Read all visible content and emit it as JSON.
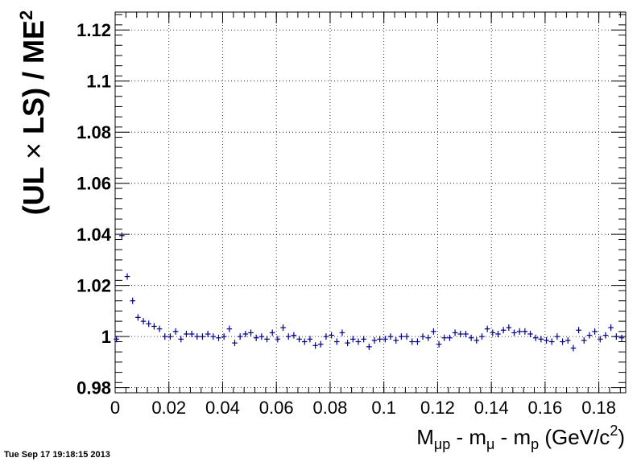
{
  "chart_data": {
    "type": "scatter",
    "title": "",
    "ylabel": "(UL × LS) / ME²",
    "ylabel_parts": {
      "prefix": "(UL ",
      "times": "×",
      "mid": " LS) / ME",
      "sup": "2"
    },
    "xlabel": "Mμp - mμ - mp (GeV/c²)",
    "xlabel_parts": {
      "p1": "M",
      "s1": "μp",
      "p2": " - m",
      "s2": "μ",
      "p3": " - m",
      "s3": "p",
      "p4": " (GeV/c",
      "sup": "2",
      "p5": ")"
    },
    "xlim": [
      0,
      0.19
    ],
    "ylim": [
      0.978,
      1.127
    ],
    "x_ticks": [
      "0",
      "0.02",
      "0.04",
      "0.06",
      "0.08",
      "0.1",
      "0.12",
      "0.14",
      "0.16",
      "0.18"
    ],
    "x_tick_values": [
      0,
      0.02,
      0.04,
      0.06,
      0.08,
      0.1,
      0.12,
      0.14,
      0.16,
      0.18
    ],
    "y_ticks": [
      "0.98",
      "1",
      "1.02",
      "1.04",
      "1.06",
      "1.08",
      "1.1",
      "1.12"
    ],
    "y_tick_values": [
      0.98,
      1.0,
      1.02,
      1.04,
      1.06,
      1.08,
      1.1,
      1.12
    ],
    "grid": true,
    "marker_color": "#00008b",
    "series": [
      {
        "x": [
          0.0005,
          0.0025,
          0.0045,
          0.0065,
          0.0085,
          0.0105,
          0.0125,
          0.0145,
          0.0165,
          0.0185,
          0.0205,
          0.0225,
          0.0245,
          0.0265,
          0.0285,
          0.0305,
          0.0325,
          0.0345,
          0.0365,
          0.0385,
          0.0405,
          0.0425,
          0.0445,
          0.0465,
          0.0485,
          0.0505,
          0.0525,
          0.0545,
          0.0565,
          0.0585,
          0.0605,
          0.0625,
          0.0645,
          0.0665,
          0.0685,
          0.0705,
          0.0725,
          0.0745,
          0.0765,
          0.0785,
          0.0805,
          0.0825,
          0.0845,
          0.0865,
          0.0885,
          0.0905,
          0.0925,
          0.0945,
          0.0965,
          0.0985,
          0.1005,
          0.1025,
          0.1045,
          0.1065,
          0.1085,
          0.1105,
          0.1125,
          0.1145,
          0.1165,
          0.1185,
          0.1205,
          0.1225,
          0.1245,
          0.1265,
          0.1285,
          0.1305,
          0.1325,
          0.1345,
          0.1365,
          0.1385,
          0.1405,
          0.1425,
          0.1445,
          0.1465,
          0.1485,
          0.1505,
          0.1525,
          0.1545,
          0.1565,
          0.1585,
          0.1605,
          0.1625,
          0.1645,
          0.1665,
          0.1685,
          0.1705,
          0.1725,
          0.1745,
          0.1765,
          0.1785,
          0.1805,
          0.1825,
          0.1845,
          0.1865,
          0.1885
        ],
        "y": [
          0.999,
          1.0395,
          1.0235,
          1.014,
          1.0075,
          1.006,
          1.005,
          1.004,
          1.003,
          1.0,
          1.0,
          1.002,
          0.999,
          1.001,
          1.001,
          1.0,
          1.0,
          1.001,
          1.0,
          0.9995,
          1.0,
          1.003,
          0.9975,
          1.0,
          1.001,
          1.0015,
          0.9995,
          1.0,
          0.999,
          1.0015,
          0.999,
          1.0035,
          1.0,
          1.0005,
          0.999,
          0.998,
          0.999,
          0.9965,
          0.997,
          1.0,
          1.0005,
          0.998,
          1.0015,
          0.9975,
          0.999,
          0.998,
          0.999,
          0.996,
          0.9985,
          0.999,
          0.999,
          1.0,
          0.9985,
          1.0,
          1.0,
          0.998,
          0.998,
          1.0,
          0.9995,
          1.002,
          0.997,
          0.9995,
          0.9995,
          1.0015,
          1.001,
          1.001,
          0.9995,
          0.9985,
          1.0,
          1.003,
          1.0015,
          1.001,
          1.0025,
          1.0035,
          1.0015,
          1.002,
          1.002,
          1.001,
          0.9995,
          0.999,
          0.9985,
          0.998,
          1.0,
          0.998,
          0.9985,
          0.9955,
          1.0025,
          0.9985,
          1.0005,
          1.002,
          0.999,
          1.0005,
          1.0035,
          1.0,
          0.9995
        ]
      }
    ]
  },
  "timestamp": "Tue Sep 17 19:18:15 2013"
}
